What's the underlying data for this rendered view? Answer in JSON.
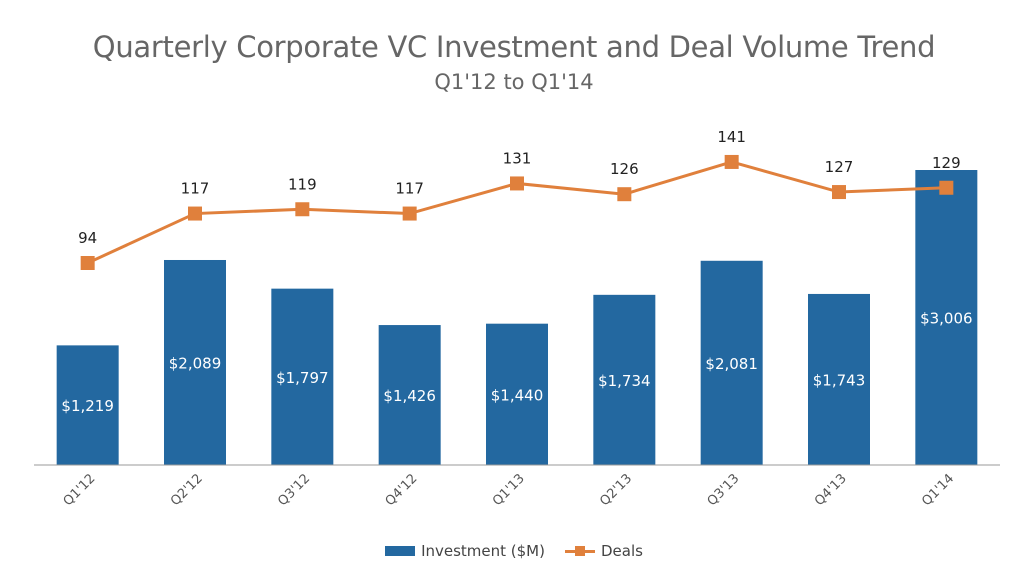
{
  "colors": {
    "bar": "#2368A0",
    "line": "#E0803C",
    "axis": "#9a9a9a",
    "bar_label": "#ffffff",
    "point_label": "#222222",
    "tick_label": "#555555"
  },
  "chart_data": {
    "type": "bar",
    "title": "Quarterly Corporate VC Investment and Deal Volume Trend",
    "subtitle": "Q1'12 to Q1'14",
    "categories": [
      "Q1'12",
      "Q2'12",
      "Q3'12",
      "Q4'12",
      "Q1'13",
      "Q2'13",
      "Q3'13",
      "Q4'13",
      "Q1'14"
    ],
    "series": [
      {
        "name": "Investment ($M)",
        "type": "bar",
        "values": [
          1219,
          2089,
          1797,
          1426,
          1440,
          1734,
          2081,
          1743,
          3006
        ],
        "labels": [
          "$1,219",
          "$2,089",
          "$1,797",
          "$1,426",
          "$1,440",
          "$1,734",
          "$2,081",
          "$1,743",
          "$3,006"
        ]
      },
      {
        "name": "Deals",
        "type": "line",
        "values": [
          94,
          117,
          119,
          117,
          131,
          126,
          141,
          127,
          129
        ],
        "labels": [
          "94",
          "117",
          "119",
          "117",
          "131",
          "126",
          "141",
          "127",
          "129"
        ]
      }
    ],
    "legend_position": "bottom",
    "grid": false
  }
}
